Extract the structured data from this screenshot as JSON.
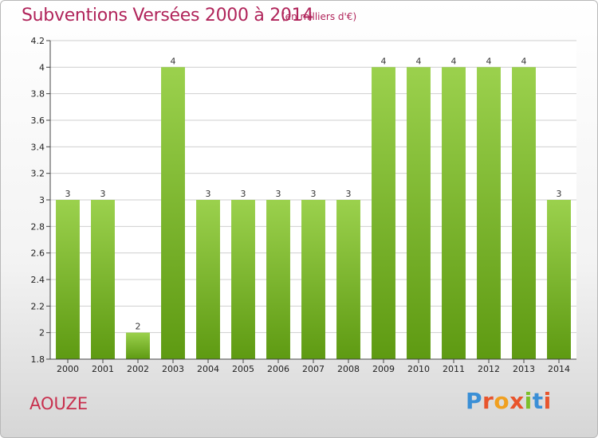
{
  "header": {
    "title": "Subventions Versées 2000 à 2014",
    "unit_note": "(en milliers d'€)"
  },
  "footer": {
    "location": "AOUZE",
    "logo": {
      "text": "Proxiti",
      "letter_colors": [
        "#3a8fd6",
        "#e8542c",
        "#f0a020",
        "#e8542c",
        "#7cbf2a",
        "#3a8fd6",
        "#e8542c"
      ]
    }
  },
  "colors": {
    "bar_top": "#9bd14d",
    "bar_bottom": "#5e9a12",
    "title": "#b0245a",
    "grid": "#cfcfcf"
  },
  "chart_data": {
    "type": "bar",
    "title": "Subventions Versées 2000 à 2014",
    "subtitle": "(en milliers d'€)",
    "xlabel": "",
    "ylabel": "",
    "categories": [
      "2000",
      "2001",
      "2002",
      "2003",
      "2004",
      "2005",
      "2006",
      "2007",
      "2008",
      "2009",
      "2010",
      "2011",
      "2012",
      "2013",
      "2014"
    ],
    "values": [
      3,
      3,
      2,
      4,
      3,
      3,
      3,
      3,
      3,
      4,
      4,
      4,
      4,
      4,
      3
    ],
    "data_labels": [
      "3",
      "3",
      "2",
      "4",
      "3",
      "3",
      "3",
      "3",
      "3",
      "4",
      "4",
      "4",
      "4",
      "4",
      "3"
    ],
    "ylim": [
      1.8,
      4.2
    ],
    "yticks": [
      "1.8",
      "2",
      "2.2",
      "2.4",
      "2.6",
      "2.8",
      "3",
      "3.2",
      "3.4",
      "3.6",
      "3.8",
      "4",
      "4.2"
    ],
    "grid": true,
    "legend": "none"
  }
}
